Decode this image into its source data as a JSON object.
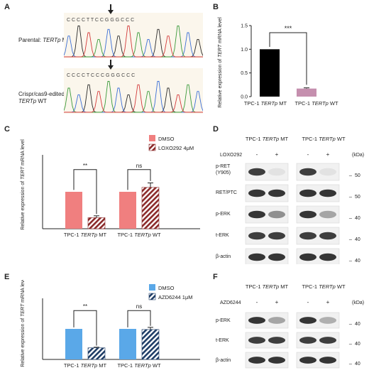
{
  "panels": {
    "A": {
      "label": "A",
      "trace1_label_pre": "Parental: ",
      "trace1_label_gene": "TERTp",
      "trace1_label_post": " MT",
      "trace2_label_line1": "Crispr/cas9-edited:",
      "trace2_label_gene": "TERTp",
      "trace2_label_post": " WT",
      "seq1": "C C C C T T C C G G G C C C",
      "seq2": "C C C C T C C C G G G C C C"
    },
    "B": {
      "label": "B"
    },
    "C": {
      "label": "C"
    },
    "D": {
      "label": "D",
      "group1": "TPC-1 TERTp MT",
      "group2": "TPC-1 TERTp WT",
      "treatment": "LOXO292",
      "lanes": [
        "-",
        "+",
        "-",
        "+"
      ],
      "kda_label": "(kDa)",
      "rows": [
        {
          "name": "p-RET\n(Y905)",
          "line1": "p-RET",
          "line2": "(Y905)",
          "kda": "50"
        },
        {
          "name": "RET/PTC",
          "kda": "50"
        },
        {
          "name": "p-ERK",
          "kda": "40"
        },
        {
          "name": "t-ERK",
          "kda": "40"
        },
        {
          "name": "β-actin",
          "kda": "40"
        }
      ],
      "bands": [
        [
          0.85,
          0.05,
          0.85,
          0.05
        ],
        [
          0.9,
          0.9,
          0.9,
          0.9
        ],
        [
          0.9,
          0.45,
          0.9,
          0.35
        ],
        [
          0.85,
          0.85,
          0.85,
          0.85
        ],
        [
          0.9,
          0.9,
          0.9,
          0.9
        ]
      ]
    },
    "E": {
      "label": "E"
    },
    "F": {
      "label": "F",
      "group1": "TPC-1 TERTp MT",
      "group2": "TPC-1 TERTp WT",
      "treatment": "AZD6244",
      "lanes": [
        "-",
        "+",
        "-",
        "+"
      ],
      "kda_label": "(kDa)",
      "rows": [
        {
          "name": "p-ERK",
          "kda": "40"
        },
        {
          "name": "t-ERK",
          "kda": "40"
        },
        {
          "name": "β-actin",
          "kda": "40"
        }
      ],
      "bands": [
        [
          0.9,
          0.35,
          0.9,
          0.3
        ],
        [
          0.85,
          0.85,
          0.85,
          0.85
        ],
        [
          0.9,
          0.9,
          0.9,
          0.9
        ]
      ]
    }
  },
  "chart_data": [
    {
      "panel": "B",
      "type": "bar",
      "categories": [
        "TPC-1 TERTp MT",
        "TPC-1 TERTp WT"
      ],
      "values": [
        1.0,
        0.17
      ],
      "errors": [
        0.0,
        0.015
      ],
      "colors": [
        "#000000",
        "#c58fae"
      ],
      "ylabel": "Relative expression of TERT mRNA level",
      "ylim": [
        0,
        1.5
      ],
      "yticks": [
        "0.0",
        "0.5",
        "1.0",
        "1.5"
      ],
      "significance": "***"
    },
    {
      "panel": "C",
      "type": "bar",
      "categories": [
        "TPC-1 TERTp MT",
        "TPC-1 TERTp WT"
      ],
      "series": [
        {
          "name": "DMSO",
          "values": [
            1.0,
            1.0
          ],
          "errors": [
            0,
            0
          ],
          "color": "#f07f7f"
        },
        {
          "name": "LOXO292 4μM",
          "values": [
            0.3,
            1.12
          ],
          "errors": [
            0.05,
            0.12
          ],
          "color": "#8b2a2a"
        }
      ],
      "ylabel": "Relative expression of TERT mRNA level",
      "ylim": [
        0,
        2.0
      ],
      "significance": [
        "**",
        "ns"
      ],
      "legend": "top-right"
    },
    {
      "panel": "E",
      "type": "bar",
      "categories": [
        "TPC-1 TERTp MT",
        "TPC-1 TERTp WT"
      ],
      "series": [
        {
          "name": "DMSO",
          "values": [
            1.0,
            1.0
          ],
          "errors": [
            0,
            0
          ],
          "color": "#5aa8e8"
        },
        {
          "name": "AZD6244 1μM",
          "values": [
            0.38,
            0.98
          ],
          "errors": [
            0.02,
            0.07
          ],
          "color": "#1f3d66"
        }
      ],
      "ylabel": "Relative expression of TERT mRNA level",
      "ylim": [
        0,
        2.0
      ],
      "significance": [
        "**",
        "ns"
      ],
      "legend": "top-right"
    }
  ]
}
